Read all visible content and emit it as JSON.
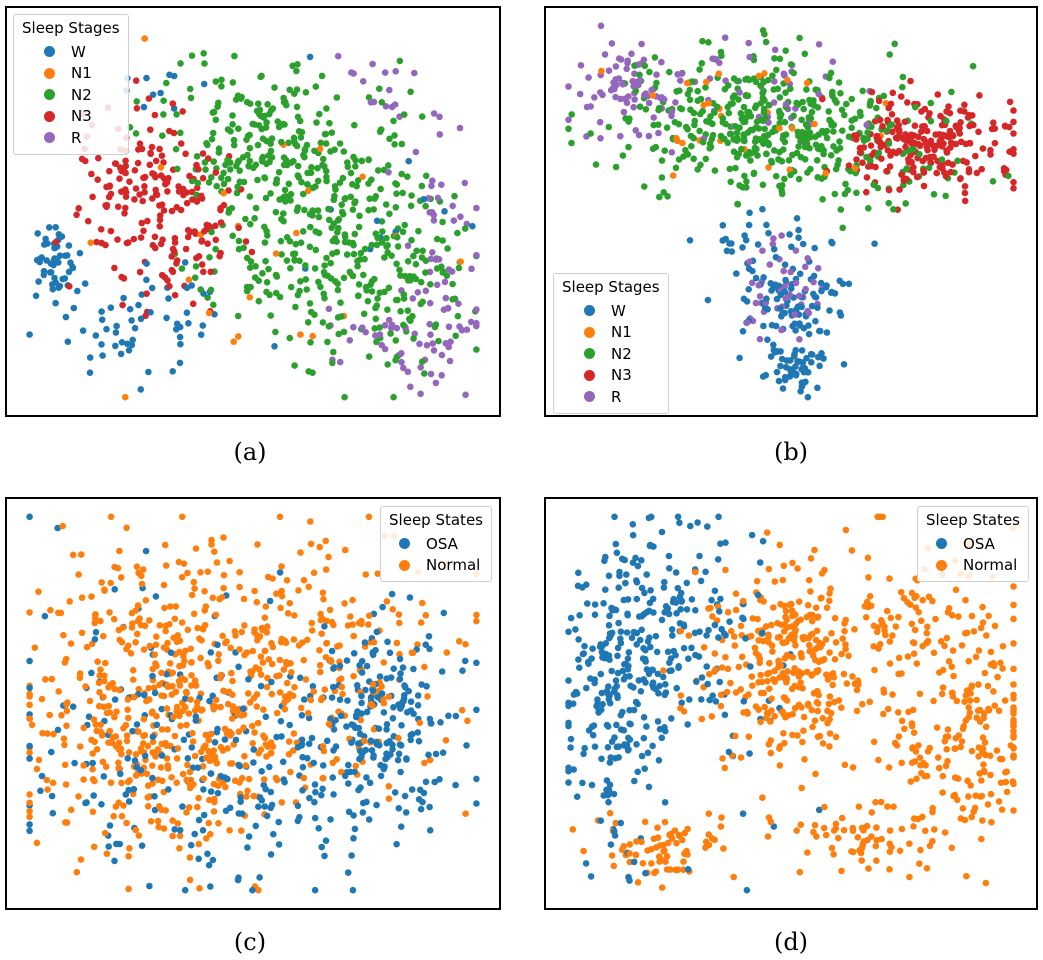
{
  "figure": {
    "colors": {
      "W": "#1f77b4",
      "N1": "#ff7f0e",
      "N2": "#2ca02c",
      "N3": "#d62728",
      "R": "#9467bd",
      "OSA": "#1f77b4",
      "Normal": "#ff7f0e"
    }
  },
  "chart_data": [
    {
      "type": "scatter",
      "panel": "a",
      "caption": "(a)",
      "title": "",
      "xlabel": "",
      "ylabel": "",
      "axes_ticks": "none",
      "legend": {
        "title": "Sleep Stages",
        "position": "top-left",
        "entries": [
          "W",
          "N1",
          "N2",
          "N3",
          "R"
        ]
      },
      "xlim": [
        0,
        100
      ],
      "ylim": [
        0,
        100
      ],
      "series": [
        {
          "name": "W",
          "color": "#1f77b4",
          "count": 130,
          "clusters": [
            {
              "x": 7,
              "y": 37,
              "sx": 2,
              "sy": 5,
              "w": 3
            },
            {
              "x": 25,
              "y": 22,
              "sx": 9,
              "sy": 7,
              "w": 4
            },
            {
              "x": 30,
              "y": 82,
              "sx": 6,
              "sy": 5,
              "w": 1
            },
            {
              "x": 80,
              "y": 60,
              "sx": 10,
              "sy": 15,
              "w": 1
            }
          ]
        },
        {
          "name": "N1",
          "color": "#ff7f0e",
          "count": 24,
          "clusters": [
            {
              "x": 55,
              "y": 45,
              "sx": 25,
              "sy": 25,
              "w": 1
            }
          ]
        },
        {
          "name": "N2",
          "color": "#2ca02c",
          "count": 560,
          "clusters": [
            {
              "x": 62,
              "y": 50,
              "sx": 14,
              "sy": 18,
              "w": 5
            },
            {
              "x": 80,
              "y": 35,
              "sx": 10,
              "sy": 15,
              "w": 3
            },
            {
              "x": 50,
              "y": 70,
              "sx": 10,
              "sy": 8,
              "w": 2
            }
          ]
        },
        {
          "name": "N3",
          "color": "#d62728",
          "count": 200,
          "clusters": [
            {
              "x": 30,
              "y": 52,
              "sx": 9,
              "sy": 12,
              "w": 1
            }
          ]
        },
        {
          "name": "R",
          "color": "#9467bd",
          "count": 110,
          "clusters": [
            {
              "x": 92,
              "y": 45,
              "sx": 4,
              "sy": 16,
              "w": 2
            },
            {
              "x": 83,
              "y": 15,
              "sx": 8,
              "sy": 8,
              "w": 2
            },
            {
              "x": 80,
              "y": 80,
              "sx": 8,
              "sy": 6,
              "w": 1
            }
          ]
        }
      ]
    },
    {
      "type": "scatter",
      "panel": "b",
      "caption": "(b)",
      "title": "",
      "xlabel": "",
      "ylabel": "",
      "axes_ticks": "none",
      "legend": {
        "title": "Sleep Stages",
        "position": "lower-left",
        "entries": [
          "W",
          "N1",
          "N2",
          "N3",
          "R"
        ]
      },
      "xlim": [
        0,
        100
      ],
      "ylim": [
        0,
        100
      ],
      "series": [
        {
          "name": "W",
          "color": "#1f77b4",
          "count": 180,
          "clusters": [
            {
              "x": 50,
              "y": 27,
              "sx": 6,
              "sy": 6,
              "w": 4
            },
            {
              "x": 52,
              "y": 9,
              "sx": 4,
              "sy": 3,
              "w": 2
            },
            {
              "x": 45,
              "y": 42,
              "sx": 10,
              "sy": 5,
              "w": 1
            }
          ]
        },
        {
          "name": "N1",
          "color": "#ff7f0e",
          "count": 30,
          "clusters": [
            {
              "x": 40,
              "y": 75,
              "sx": 20,
              "sy": 10,
              "w": 1
            }
          ]
        },
        {
          "name": "N2",
          "color": "#2ca02c",
          "count": 450,
          "clusters": [
            {
              "x": 42,
              "y": 75,
              "sx": 16,
              "sy": 9,
              "w": 3
            },
            {
              "x": 60,
              "y": 65,
              "sx": 14,
              "sy": 8,
              "w": 1
            }
          ]
        },
        {
          "name": "N3",
          "color": "#d62728",
          "count": 220,
          "clusters": [
            {
              "x": 80,
              "y": 68,
              "sx": 10,
              "sy": 6,
              "w": 1
            }
          ]
        },
        {
          "name": "R",
          "color": "#9467bd",
          "count": 170,
          "clusters": [
            {
              "x": 15,
              "y": 82,
              "sx": 7,
              "sy": 6,
              "w": 2
            },
            {
              "x": 48,
              "y": 30,
              "sx": 5,
              "sy": 6,
              "w": 1
            },
            {
              "x": 40,
              "y": 82,
              "sx": 12,
              "sy": 8,
              "w": 1
            }
          ]
        }
      ]
    },
    {
      "type": "scatter",
      "panel": "c",
      "caption": "(c)",
      "title": "",
      "xlabel": "",
      "ylabel": "",
      "axes_ticks": "none",
      "legend": {
        "title": "Sleep States",
        "position": "top-right",
        "entries": [
          "OSA",
          "Normal"
        ]
      },
      "xlim": [
        0,
        100
      ],
      "ylim": [
        0,
        100
      ],
      "series": [
        {
          "name": "OSA",
          "color": "#1f77b4",
          "count": 440,
          "clusters": [
            {
              "x": 78,
              "y": 45,
              "sx": 10,
              "sy": 14,
              "w": 3
            },
            {
              "x": 45,
              "y": 28,
              "sx": 18,
              "sy": 14,
              "w": 2
            },
            {
              "x": 30,
              "y": 50,
              "sx": 18,
              "sy": 18,
              "w": 1
            }
          ]
        },
        {
          "name": "Normal",
          "color": "#ff7f0e",
          "count": 760,
          "clusters": [
            {
              "x": 38,
              "y": 60,
              "sx": 18,
              "sy": 18,
              "w": 3
            },
            {
              "x": 30,
              "y": 35,
              "sx": 15,
              "sy": 14,
              "w": 2
            },
            {
              "x": 70,
              "y": 60,
              "sx": 14,
              "sy": 18,
              "w": 1
            }
          ]
        }
      ]
    },
    {
      "type": "scatter",
      "panel": "d",
      "caption": "(d)",
      "title": "",
      "xlabel": "",
      "ylabel": "",
      "axes_ticks": "none",
      "legend": {
        "title": "Sleep States",
        "position": "top-right",
        "entries": [
          "OSA",
          "Normal"
        ]
      },
      "xlim": [
        0,
        100
      ],
      "ylim": [
        0,
        100
      ],
      "series": [
        {
          "name": "OSA",
          "color": "#1f77b4",
          "count": 380,
          "clusters": [
            {
              "x": 10,
              "y": 50,
              "sx": 5,
              "sy": 20,
              "w": 3
            },
            {
              "x": 22,
              "y": 72,
              "sx": 8,
              "sy": 14,
              "w": 2
            },
            {
              "x": 35,
              "y": 55,
              "sx": 10,
              "sy": 20,
              "w": 1
            }
          ]
        },
        {
          "name": "Normal",
          "color": "#ff7f0e",
          "count": 760,
          "clusters": [
            {
              "x": 48,
              "y": 60,
              "sx": 9,
              "sy": 12,
              "w": 4
            },
            {
              "x": 75,
              "y": 70,
              "sx": 14,
              "sy": 14,
              "w": 2
            },
            {
              "x": 87,
              "y": 40,
              "sx": 8,
              "sy": 14,
              "w": 2
            },
            {
              "x": 22,
              "y": 12,
              "sx": 7,
              "sy": 5,
              "w": 1
            },
            {
              "x": 65,
              "y": 15,
              "sx": 10,
              "sy": 5,
              "w": 1
            }
          ]
        }
      ]
    }
  ]
}
